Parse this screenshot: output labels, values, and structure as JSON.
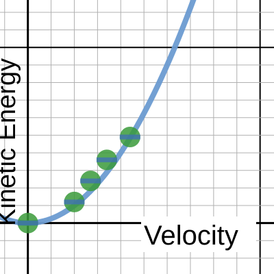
{
  "chart_data": {
    "type": "scatter",
    "xlabel": "Velocity",
    "ylabel": "Kinetic Energy",
    "xlim": [
      -1.2,
      10.6
    ],
    "ylim": [
      -2.9,
      12.7
    ],
    "grid": true,
    "points": [
      {
        "x": 0,
        "y": 0
      },
      {
        "x": 2,
        "y": 1.2
      },
      {
        "x": 2.7,
        "y": 2.4
      },
      {
        "x": 3.4,
        "y": 3.6
      },
      {
        "x": 4.4,
        "y": 4.9
      }
    ],
    "curve": {
      "type": "quadratic",
      "a": 0.25
    },
    "colors": {
      "curve": "#6b9bd1",
      "point_fill": "#3a9a3a",
      "point_accent": "#3f6fb8",
      "grid": "#b0b0b0",
      "axis": "#000000"
    }
  }
}
